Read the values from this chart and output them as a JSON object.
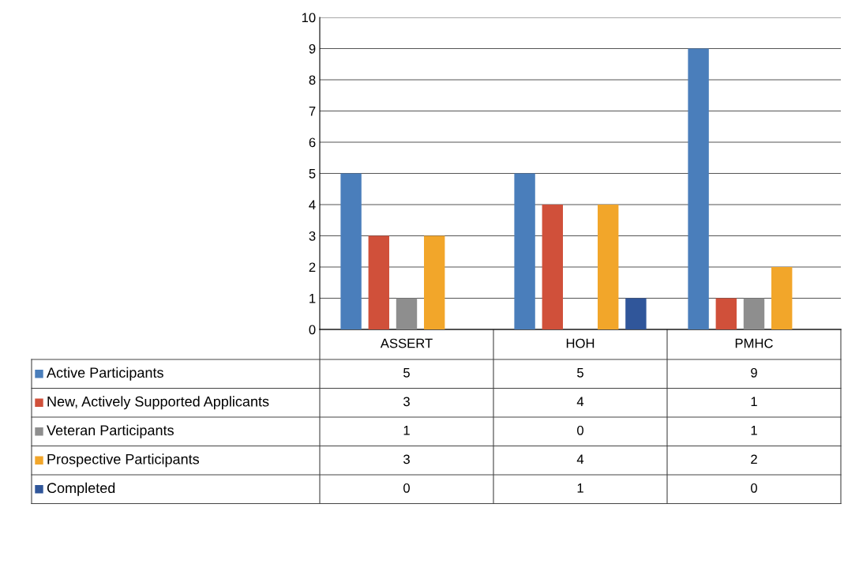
{
  "chart_data": {
    "type": "bar",
    "categories": [
      "ASSERT",
      "HOH",
      "PMHC"
    ],
    "series": [
      {
        "name": "Active Participants",
        "color": "#4a7ebb",
        "values": [
          5,
          5,
          9
        ]
      },
      {
        "name": "New, Actively Supported Applicants",
        "color": "#d0503a",
        "values": [
          3,
          4,
          1
        ]
      },
      {
        "name": "Veteran Participants",
        "color": "#8e8e8e",
        "values": [
          1,
          0,
          1
        ]
      },
      {
        "name": "Prospective Participants",
        "color": "#f2a62a",
        "values": [
          3,
          4,
          2
        ]
      },
      {
        "name": "Completed",
        "color": "#30569a",
        "values": [
          0,
          1,
          0
        ]
      }
    ],
    "ylim": [
      0,
      10
    ],
    "yticks": [
      0,
      1,
      2,
      3,
      4,
      5,
      6,
      7,
      8,
      9,
      10
    ],
    "grid": "y",
    "data_labels": true,
    "legend": "bottom"
  }
}
